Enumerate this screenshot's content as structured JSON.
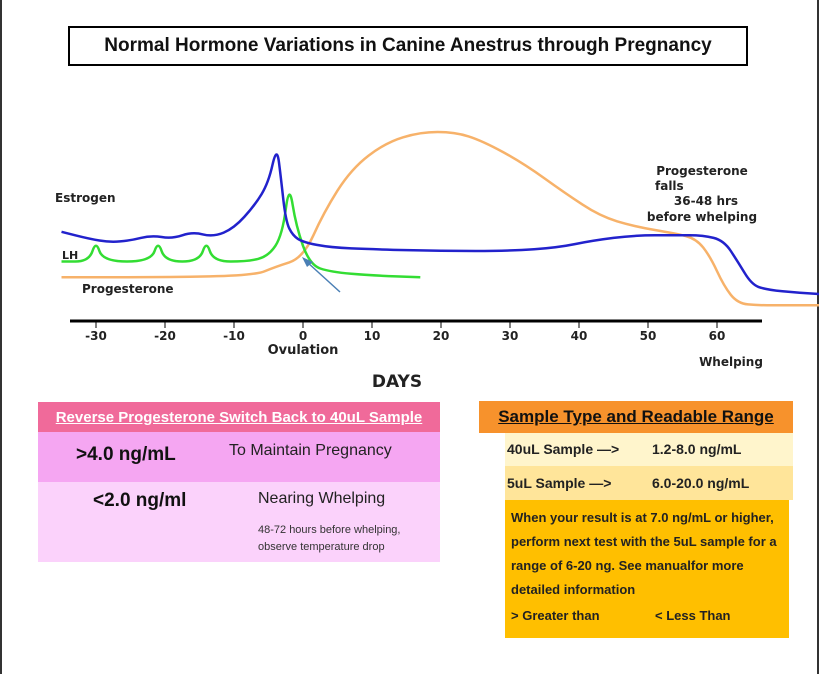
{
  "title": "Normal Hormone Variations in Canine Anestrus through Pregnancy",
  "chart_data": {
    "type": "line",
    "title": "Normal Hormone Variations in Canine Anestrus through Pregnancy",
    "xlabel": "DAYS",
    "xlim": [
      -33,
      80
    ],
    "x_ticks": [
      -30,
      -20,
      -10,
      0,
      10,
      20,
      30,
      40,
      50,
      60
    ],
    "x_tick_labels": [
      "-30",
      "-20",
      "-10",
      "0",
      "10",
      "20",
      "30",
      "40",
      "50",
      "60"
    ],
    "y_axis": "relative level (unlabeled)",
    "ylim": [
      0,
      100
    ],
    "annotations": {
      "ovulation": "Ovulation",
      "whelping": "Whelping",
      "progesterone_falls": [
        "Progesterone",
        "falls",
        "36-48 hrs",
        "before whelping"
      ]
    },
    "series": [
      {
        "name": "Estrogen",
        "color": "#2222cc",
        "x": [
          -35,
          -31,
          -28,
          -25,
          -22,
          -19,
          -16,
          -13,
          -10,
          -7,
          -5,
          -3.8,
          -3.2,
          -2.5,
          -1.5,
          0,
          4,
          10,
          20,
          30,
          37,
          42,
          48,
          54,
          58,
          61,
          63,
          65,
          67,
          72,
          77
        ],
        "y": [
          47,
          43,
          41,
          42,
          45,
          43,
          47,
          44,
          49,
          62,
          75,
          96,
          78,
          53,
          45,
          41,
          38,
          37,
          36,
          36,
          38,
          42,
          45,
          45,
          45,
          42,
          30,
          17,
          14,
          12,
          11
        ]
      },
      {
        "name": "LH",
        "color": "#33dd33",
        "x": [
          -35,
          -31,
          -30,
          -29,
          -22,
          -21,
          -20,
          -15,
          -14,
          -13,
          -8,
          -5,
          -3,
          -2,
          -1,
          1,
          4,
          10,
          17
        ],
        "y": [
          30,
          30,
          42,
          30,
          30,
          42,
          30,
          30,
          42,
          30,
          30,
          33,
          45,
          75,
          50,
          28,
          24,
          22,
          21
        ]
      },
      {
        "name": "Progesterone",
        "color": "#f7b26a",
        "x": [
          -35,
          -20,
          -7,
          -4,
          0,
          3,
          7,
          12,
          17,
          22,
          26,
          32,
          38,
          43,
          48,
          54,
          57,
          59,
          61,
          63,
          66,
          70,
          76
        ],
        "y": [
          21,
          21,
          22,
          27,
          32,
          58,
          83,
          98,
          104,
          104,
          99,
          86,
          69,
          56,
          50,
          46,
          43,
          33,
          16,
          6,
          5,
          5,
          5
        ]
      }
    ]
  },
  "left_panel": {
    "header": "Reverse Progesterone Switch Back to 40uL Sample",
    "row1": {
      "value": ">4.0 ng/mL",
      "desc": "To Maintain Pregnancy"
    },
    "row2": {
      "value": "<2.0 ng/ml",
      "desc": "Nearing Whelping",
      "note1": "48-72 hours before whelping,",
      "note2": "observe temperature drop"
    }
  },
  "right_panel": {
    "header": "Sample Type and Readable Range",
    "row1": {
      "label": "40uL Sample —>",
      "range": "1.2-8.0 ng/mL"
    },
    "row2": {
      "label": "5uL Sample —>",
      "range": "6.0-20.0 ng/mL"
    },
    "note": "When your result is at 7.0 ng/mL or higher, perform next test with the 5uL sample for a range of 6-20 ng. See manualfor more detailed information",
    "legend_gt": "> Greater than",
    "legend_lt": "< Less Than"
  }
}
